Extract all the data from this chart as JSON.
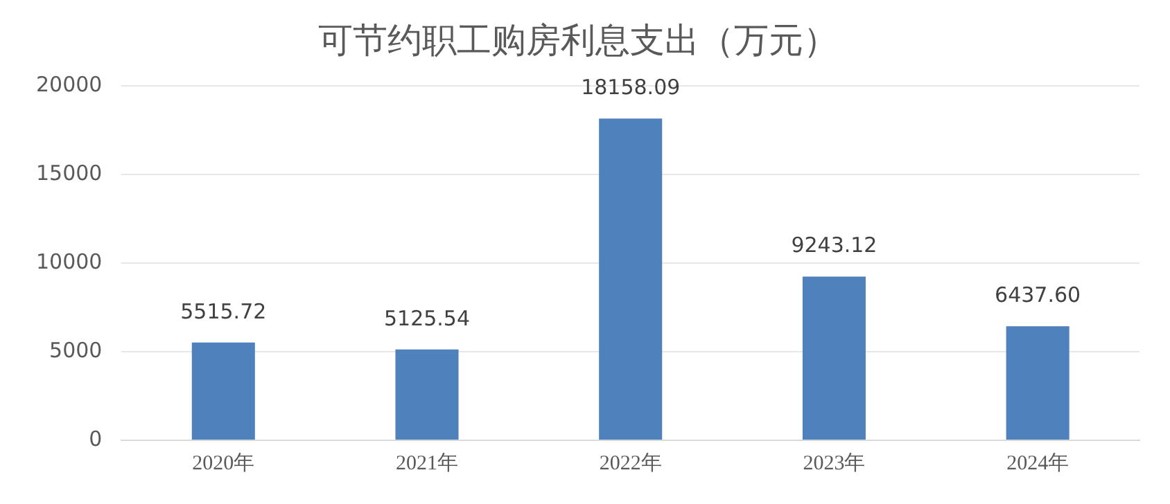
{
  "chart_data": {
    "type": "bar",
    "title": "可节约职工购房利息支出（万元）",
    "categories": [
      "2020年",
      "2021年",
      "2022年",
      "2023年",
      "2024年"
    ],
    "values": [
      5515.72,
      5125.54,
      18158.09,
      9243.12,
      6437.6
    ],
    "value_labels": [
      "5515.72",
      "5125.54",
      "18158.09",
      "9243.12",
      "6437.60"
    ],
    "color": "#4f81bd",
    "ylim": [
      0,
      20000
    ],
    "yticks": [
      0,
      5000,
      10000,
      15000,
      20000
    ],
    "grid": "y",
    "legend": false
  }
}
